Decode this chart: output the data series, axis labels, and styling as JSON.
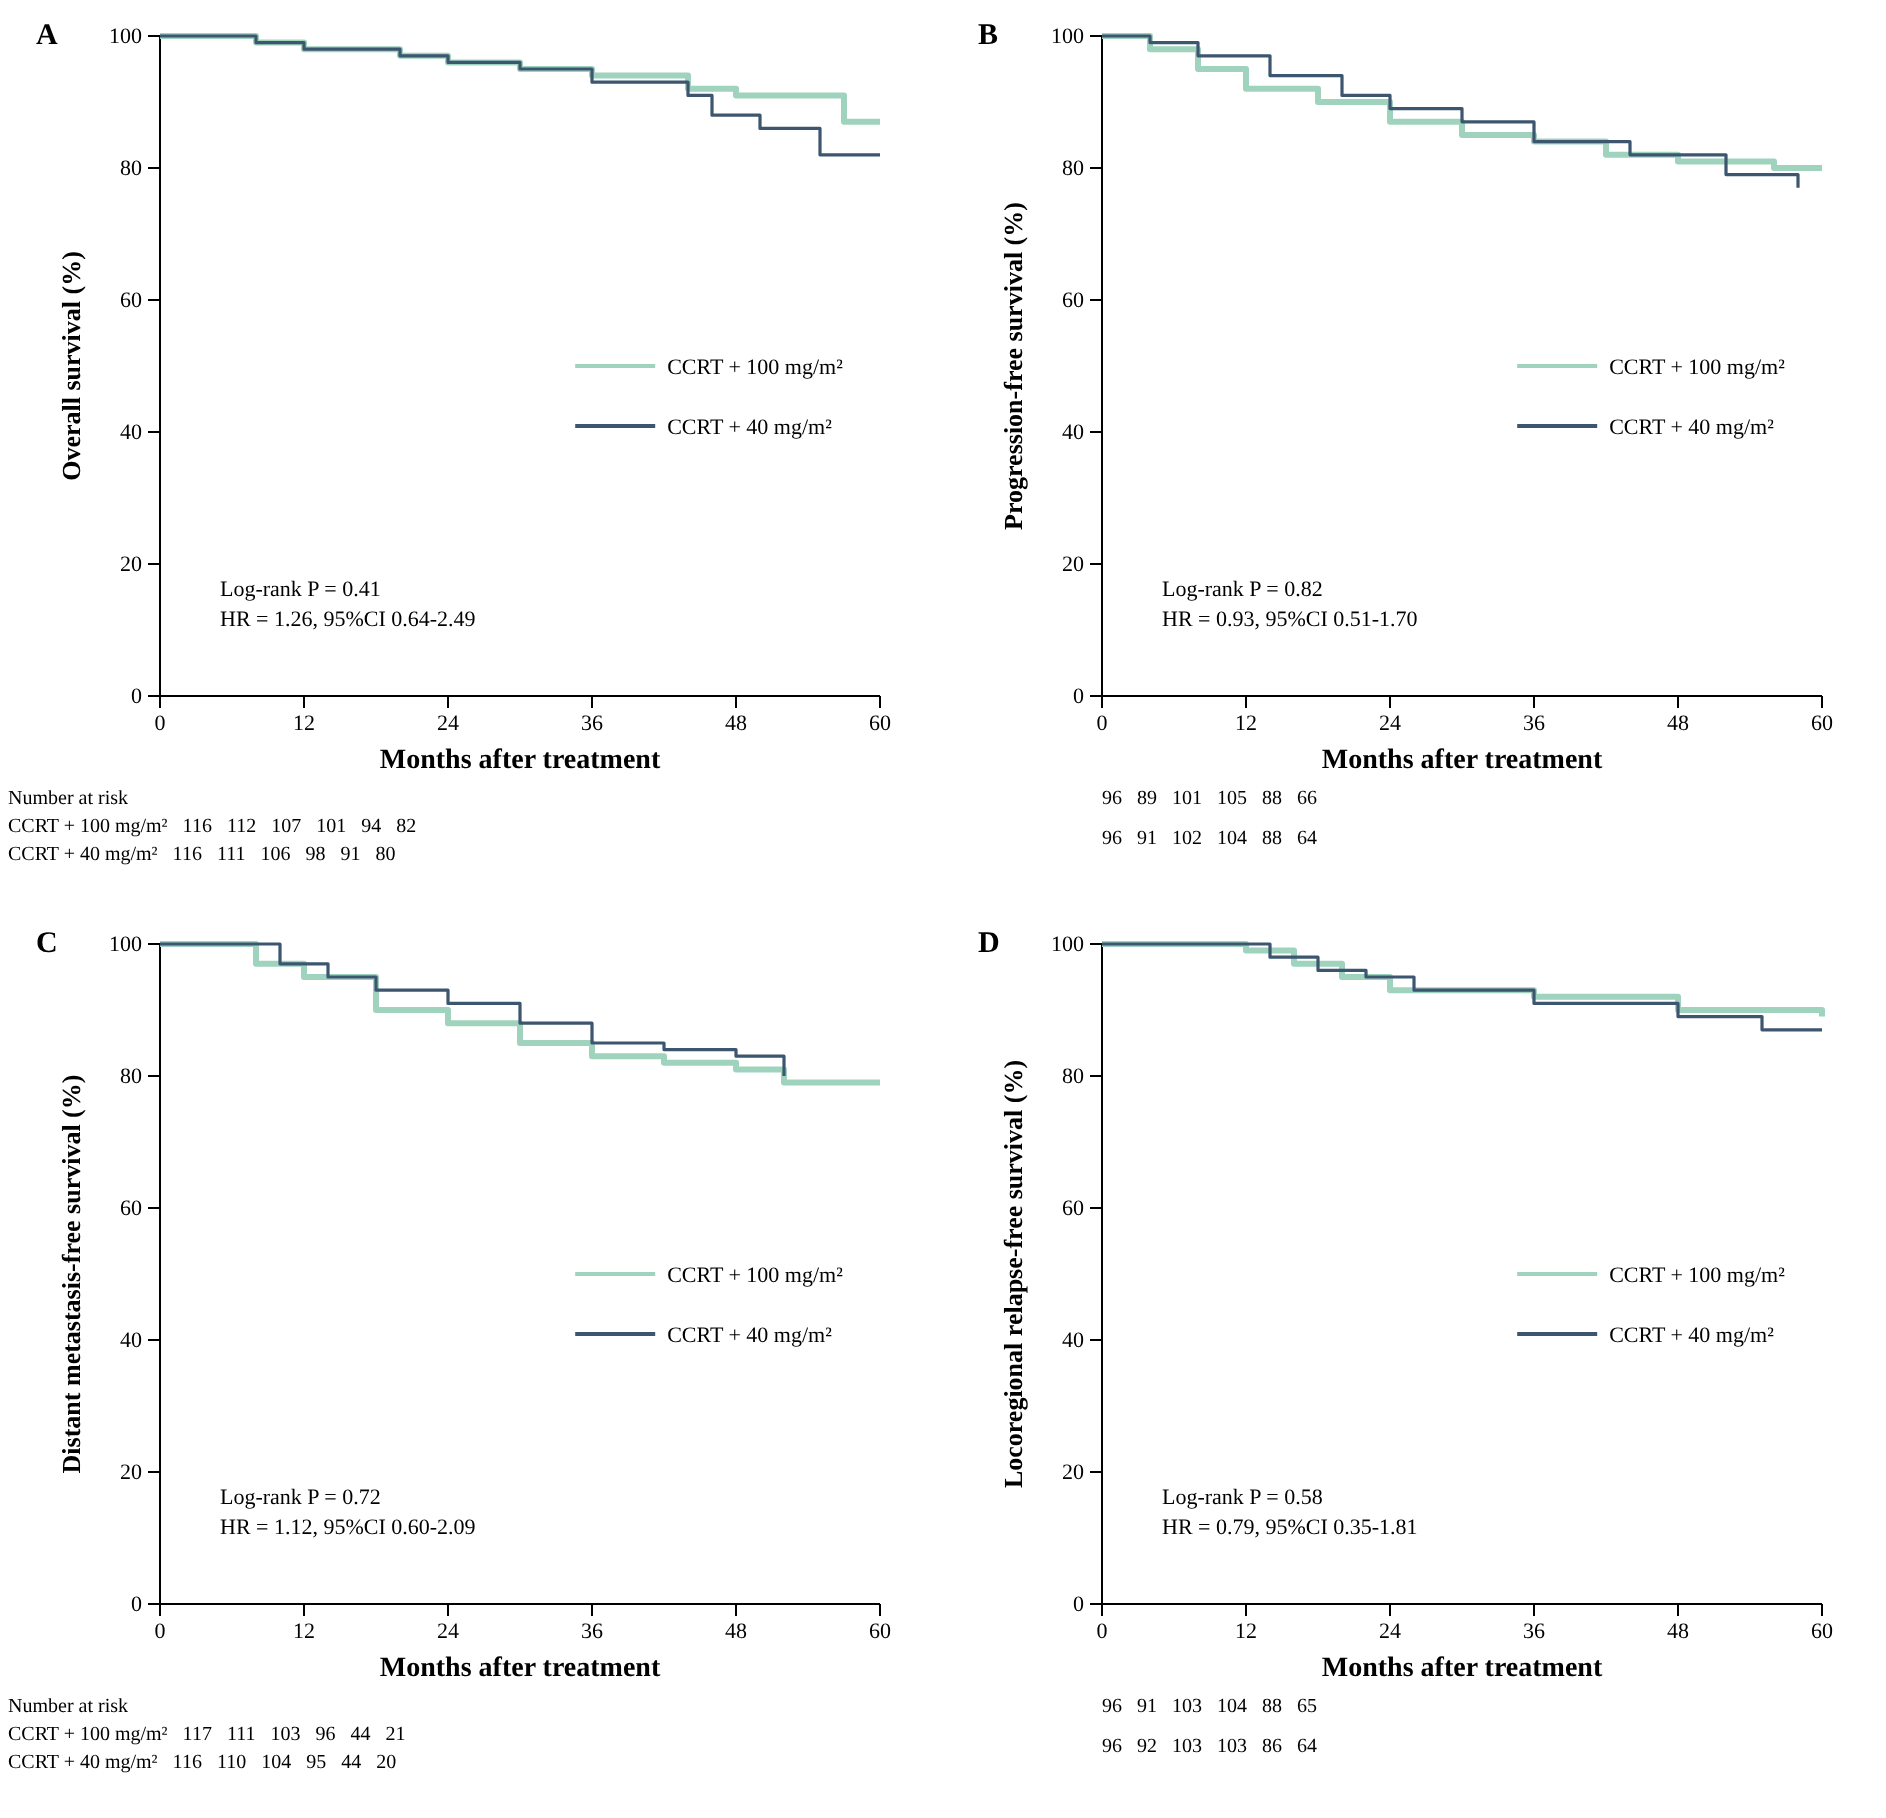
{
  "chart_data": [
    {
      "type": "step",
      "title": "A",
      "xlabel": "Months after treatment",
      "ylabel": "Overall survival (%)",
      "xlim": [
        0,
        60
      ],
      "xticks": [
        0,
        12,
        24,
        36,
        48,
        60
      ],
      "ylim": [
        0,
        100
      ],
      "yticks": [
        0,
        20,
        40,
        60,
        80,
        100
      ],
      "legend": "right",
      "grid": false,
      "series": [
        {
          "name": "CCRT + 100 mg/m²",
          "color": "#9fd3bd",
          "x": [
            0,
            8,
            12,
            20,
            24,
            30,
            36,
            44,
            48,
            57,
            60
          ],
          "values": [
            100,
            99,
            98,
            97,
            96,
            95,
            94,
            92,
            91,
            87,
            87
          ]
        },
        {
          "name": "CCRT + 40 mg/m²",
          "color": "#3d5670",
          "x": [
            0,
            8,
            12,
            20,
            24,
            30,
            36,
            44,
            46,
            50,
            55,
            60
          ],
          "values": [
            100,
            99,
            98,
            97,
            96,
            95,
            93,
            91,
            88,
            86,
            82,
            82
          ]
        }
      ],
      "annotations": [
        "Log-rank P = 0.41",
        "HR = 1.26, 95%CI 0.64-2.49",
        "Number at risk",
        "CCRT + 100 mg/m²   116   112   107   101   94   82",
        "CCRT + 40 mg/m²   116   111   106   98   91   80"
      ]
    },
    {
      "type": "step",
      "title": "B",
      "xlabel": "Months after treatment",
      "ylabel": "Progression-free survival (%)",
      "xlim": [
        0,
        60
      ],
      "xticks": [
        0,
        12,
        24,
        36,
        48,
        60
      ],
      "ylim": [
        0,
        100
      ],
      "yticks": [
        0,
        20,
        40,
        60,
        80,
        100
      ],
      "legend": "right",
      "grid": false,
      "series": [
        {
          "name": "CCRT + 100 mg/m²",
          "color": "#9fd3bd",
          "x": [
            0,
            4,
            8,
            12,
            18,
            24,
            30,
            36,
            42,
            48,
            56,
            60
          ],
          "values": [
            100,
            98,
            95,
            92,
            90,
            87,
            85,
            84,
            82,
            81,
            80,
            80
          ]
        },
        {
          "name": "CCRT + 40 mg/m²",
          "color": "#3d5670",
          "x": [
            0,
            4,
            8,
            14,
            20,
            24,
            30,
            36,
            44,
            52,
            58
          ],
          "values": [
            100,
            99,
            97,
            94,
            91,
            89,
            87,
            84,
            82,
            79,
            77
          ]
        }
      ],
      "annotations": [
        "Log-rank P = 0.82",
        "HR = 0.93, 95%CI 0.51-1.70",
        "96   89   101   105   88   66",
        "96   91   102   104   88   64"
      ]
    },
    {
      "type": "step",
      "title": "C",
      "xlabel": "Months after treatment",
      "ylabel": "Distant metastasis-free survival (%)",
      "xlim": [
        0,
        60
      ],
      "xticks": [
        0,
        12,
        24,
        36,
        48,
        60
      ],
      "ylim": [
        0,
        100
      ],
      "yticks": [
        0,
        20,
        40,
        60,
        80,
        100
      ],
      "legend": "right",
      "grid": false,
      "series": [
        {
          "name": "CCRT + 100 mg/m²",
          "color": "#9fd3bd",
          "x": [
            0,
            8,
            12,
            18,
            24,
            30,
            36,
            42,
            48,
            52,
            60
          ],
          "values": [
            100,
            97,
            95,
            90,
            88,
            85,
            83,
            82,
            81,
            79,
            79
          ]
        },
        {
          "name": "CCRT + 40 mg/m²",
          "color": "#3d5670",
          "x": [
            0,
            10,
            14,
            18,
            24,
            30,
            36,
            42,
            48,
            52
          ],
          "values": [
            100,
            97,
            95,
            93,
            91,
            88,
            85,
            84,
            83,
            80
          ]
        }
      ],
      "annotations": [
        "Log-rank P = 0.72",
        "HR = 1.12, 95%CI 0.60-2.09",
        "Number at risk",
        "CCRT + 100 mg/m²   117   111   103   96   44   21",
        "CCRT + 40 mg/m²   116   110   104   95   44   20"
      ]
    },
    {
      "type": "step",
      "title": "D",
      "xlabel": "Months after treatment",
      "ylabel": "Locoregional relapse-free survival (%)",
      "xlim": [
        0,
        60
      ],
      "xticks": [
        0,
        12,
        24,
        36,
        48,
        60
      ],
      "ylim": [
        0,
        100
      ],
      "yticks": [
        0,
        20,
        40,
        60,
        80,
        100
      ],
      "legend": "right",
      "grid": false,
      "series": [
        {
          "name": "CCRT + 100 mg/m²",
          "color": "#9fd3bd",
          "x": [
            0,
            12,
            16,
            20,
            24,
            36,
            48,
            60
          ],
          "values": [
            100,
            99,
            97,
            95,
            93,
            92,
            90,
            89
          ]
        },
        {
          "name": "CCRT + 40 mg/m²",
          "color": "#3d5670",
          "x": [
            0,
            14,
            18,
            22,
            26,
            36,
            48,
            55,
            60
          ],
          "values": [
            100,
            98,
            96,
            95,
            93,
            91,
            89,
            87,
            87
          ]
        }
      ],
      "annotations": [
        "Log-rank P = 0.58",
        "HR = 0.79, 95%CI 0.35-1.81",
        "96   91   103   104   88   65",
        "96   92   103   103   86   64"
      ]
    }
  ]
}
